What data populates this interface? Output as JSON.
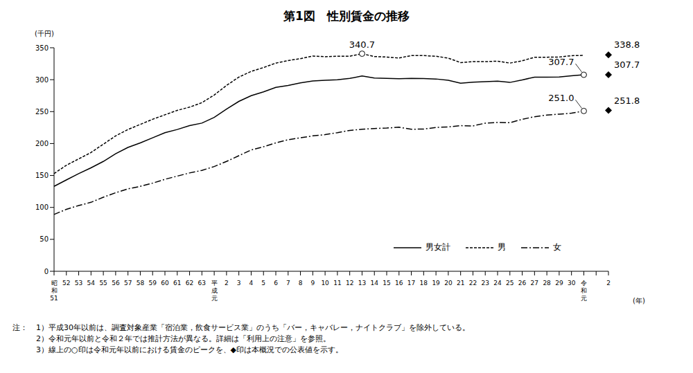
{
  "chart_data": {
    "type": "line",
    "title": "第1図　性別賃金の推移",
    "y_label": "(千円)",
    "x_label": "(年)",
    "categories": [
      "昭和51",
      "52",
      "53",
      "54",
      "55",
      "56",
      "57",
      "58",
      "59",
      "60",
      "61",
      "62",
      "63",
      "平成元",
      "2",
      "3",
      "4",
      "5",
      "6",
      "7",
      "8",
      "9",
      "10",
      "11",
      "12",
      "13",
      "14",
      "15",
      "16",
      "17",
      "18",
      "19",
      "20",
      "21",
      "22",
      "23",
      "24",
      "25",
      "26",
      "27",
      "28",
      "29",
      "30",
      "令和元",
      null,
      "2"
    ],
    "series": [
      {
        "name": "男女計",
        "color": "#000000",
        "line_style": "solid",
        "values": [
          133,
          143,
          153,
          162,
          172,
          184,
          194,
          201,
          209,
          217,
          222,
          228,
          232,
          241,
          254,
          266,
          275,
          281,
          288,
          291,
          295,
          298,
          299,
          300,
          302,
          305.8,
          302.6,
          302.1,
          301.6,
          302.0,
          301.8,
          301.1,
          299.1,
          294.5,
          296.2,
          296.8,
          297.7,
          295.7,
          299.6,
          304.0,
          304.0,
          304.3,
          306.2,
          307.7,
          null,
          307.7
        ]
      },
      {
        "name": "男",
        "color": "#000000",
        "line_style": "dashed",
        "values": [
          153,
          166,
          176,
          186,
          199,
          212,
          222,
          230,
          238,
          245,
          252,
          257,
          264,
          276,
          291,
          304,
          313,
          319,
          326,
          330,
          333,
          337,
          336,
          336.7,
          336.8,
          340.7,
          336.2,
          335.5,
          333.9,
          337.8,
          337.7,
          336.7,
          333.7,
          326.8,
          328.3,
          328.3,
          329.0,
          326.0,
          329.6,
          335.1,
          335.2,
          335.5,
          337.6,
          338.0,
          null,
          338.8
        ]
      },
      {
        "name": "女",
        "color": "#000000",
        "line_style": "dashdot",
        "values": [
          89,
          97,
          103,
          108,
          116,
          123,
          129,
          133,
          138,
          144,
          149,
          154,
          158,
          164,
          172,
          181,
          190,
          195,
          201,
          206,
          209,
          212,
          214,
          217,
          220.6,
          222.4,
          223.6,
          224.2,
          225.6,
          222.5,
          222.6,
          225.2,
          226.1,
          228.0,
          227.6,
          231.9,
          233.1,
          232.6,
          238.0,
          242.0,
          244.6,
          246.1,
          247.5,
          251.0,
          null,
          251.8
        ]
      }
    ],
    "annotations": [
      {
        "series": "男",
        "value": 340.7,
        "label": "340.7",
        "marker": "circle"
      },
      {
        "series": "男女計",
        "value": 307.7,
        "label": "307.7",
        "marker": "circle"
      },
      {
        "series": "女",
        "value": 251.0,
        "label": "251.0",
        "marker": "circle"
      },
      {
        "series": "男",
        "value": 338.8,
        "label": "338.8",
        "marker": "diamond"
      },
      {
        "series": "男女計",
        "value": 307.7,
        "label": "307.7",
        "marker": "diamond"
      },
      {
        "series": "女",
        "value": 251.8,
        "label": "251.8",
        "marker": "diamond"
      }
    ],
    "ylim": [
      0,
      350
    ],
    "yticks": [
      0,
      50,
      100,
      150,
      200,
      250,
      300,
      350
    ],
    "grid": false,
    "legend": "lower right",
    "notes_heading": "注：",
    "notes": [
      "1）平成30年以前は、調査対象産業「宿泊業，飲食サービス業」のうち「バー，キャバレー，ナイトクラブ」を除外している。",
      "2）令和元年以前と令和２年では推計方法が異なる。詳細は「利用上の注意」を参照。",
      "3）線上の○印は令和元年以前における賃金のピークを、◆印は本概況での公表値を示す。"
    ]
  }
}
